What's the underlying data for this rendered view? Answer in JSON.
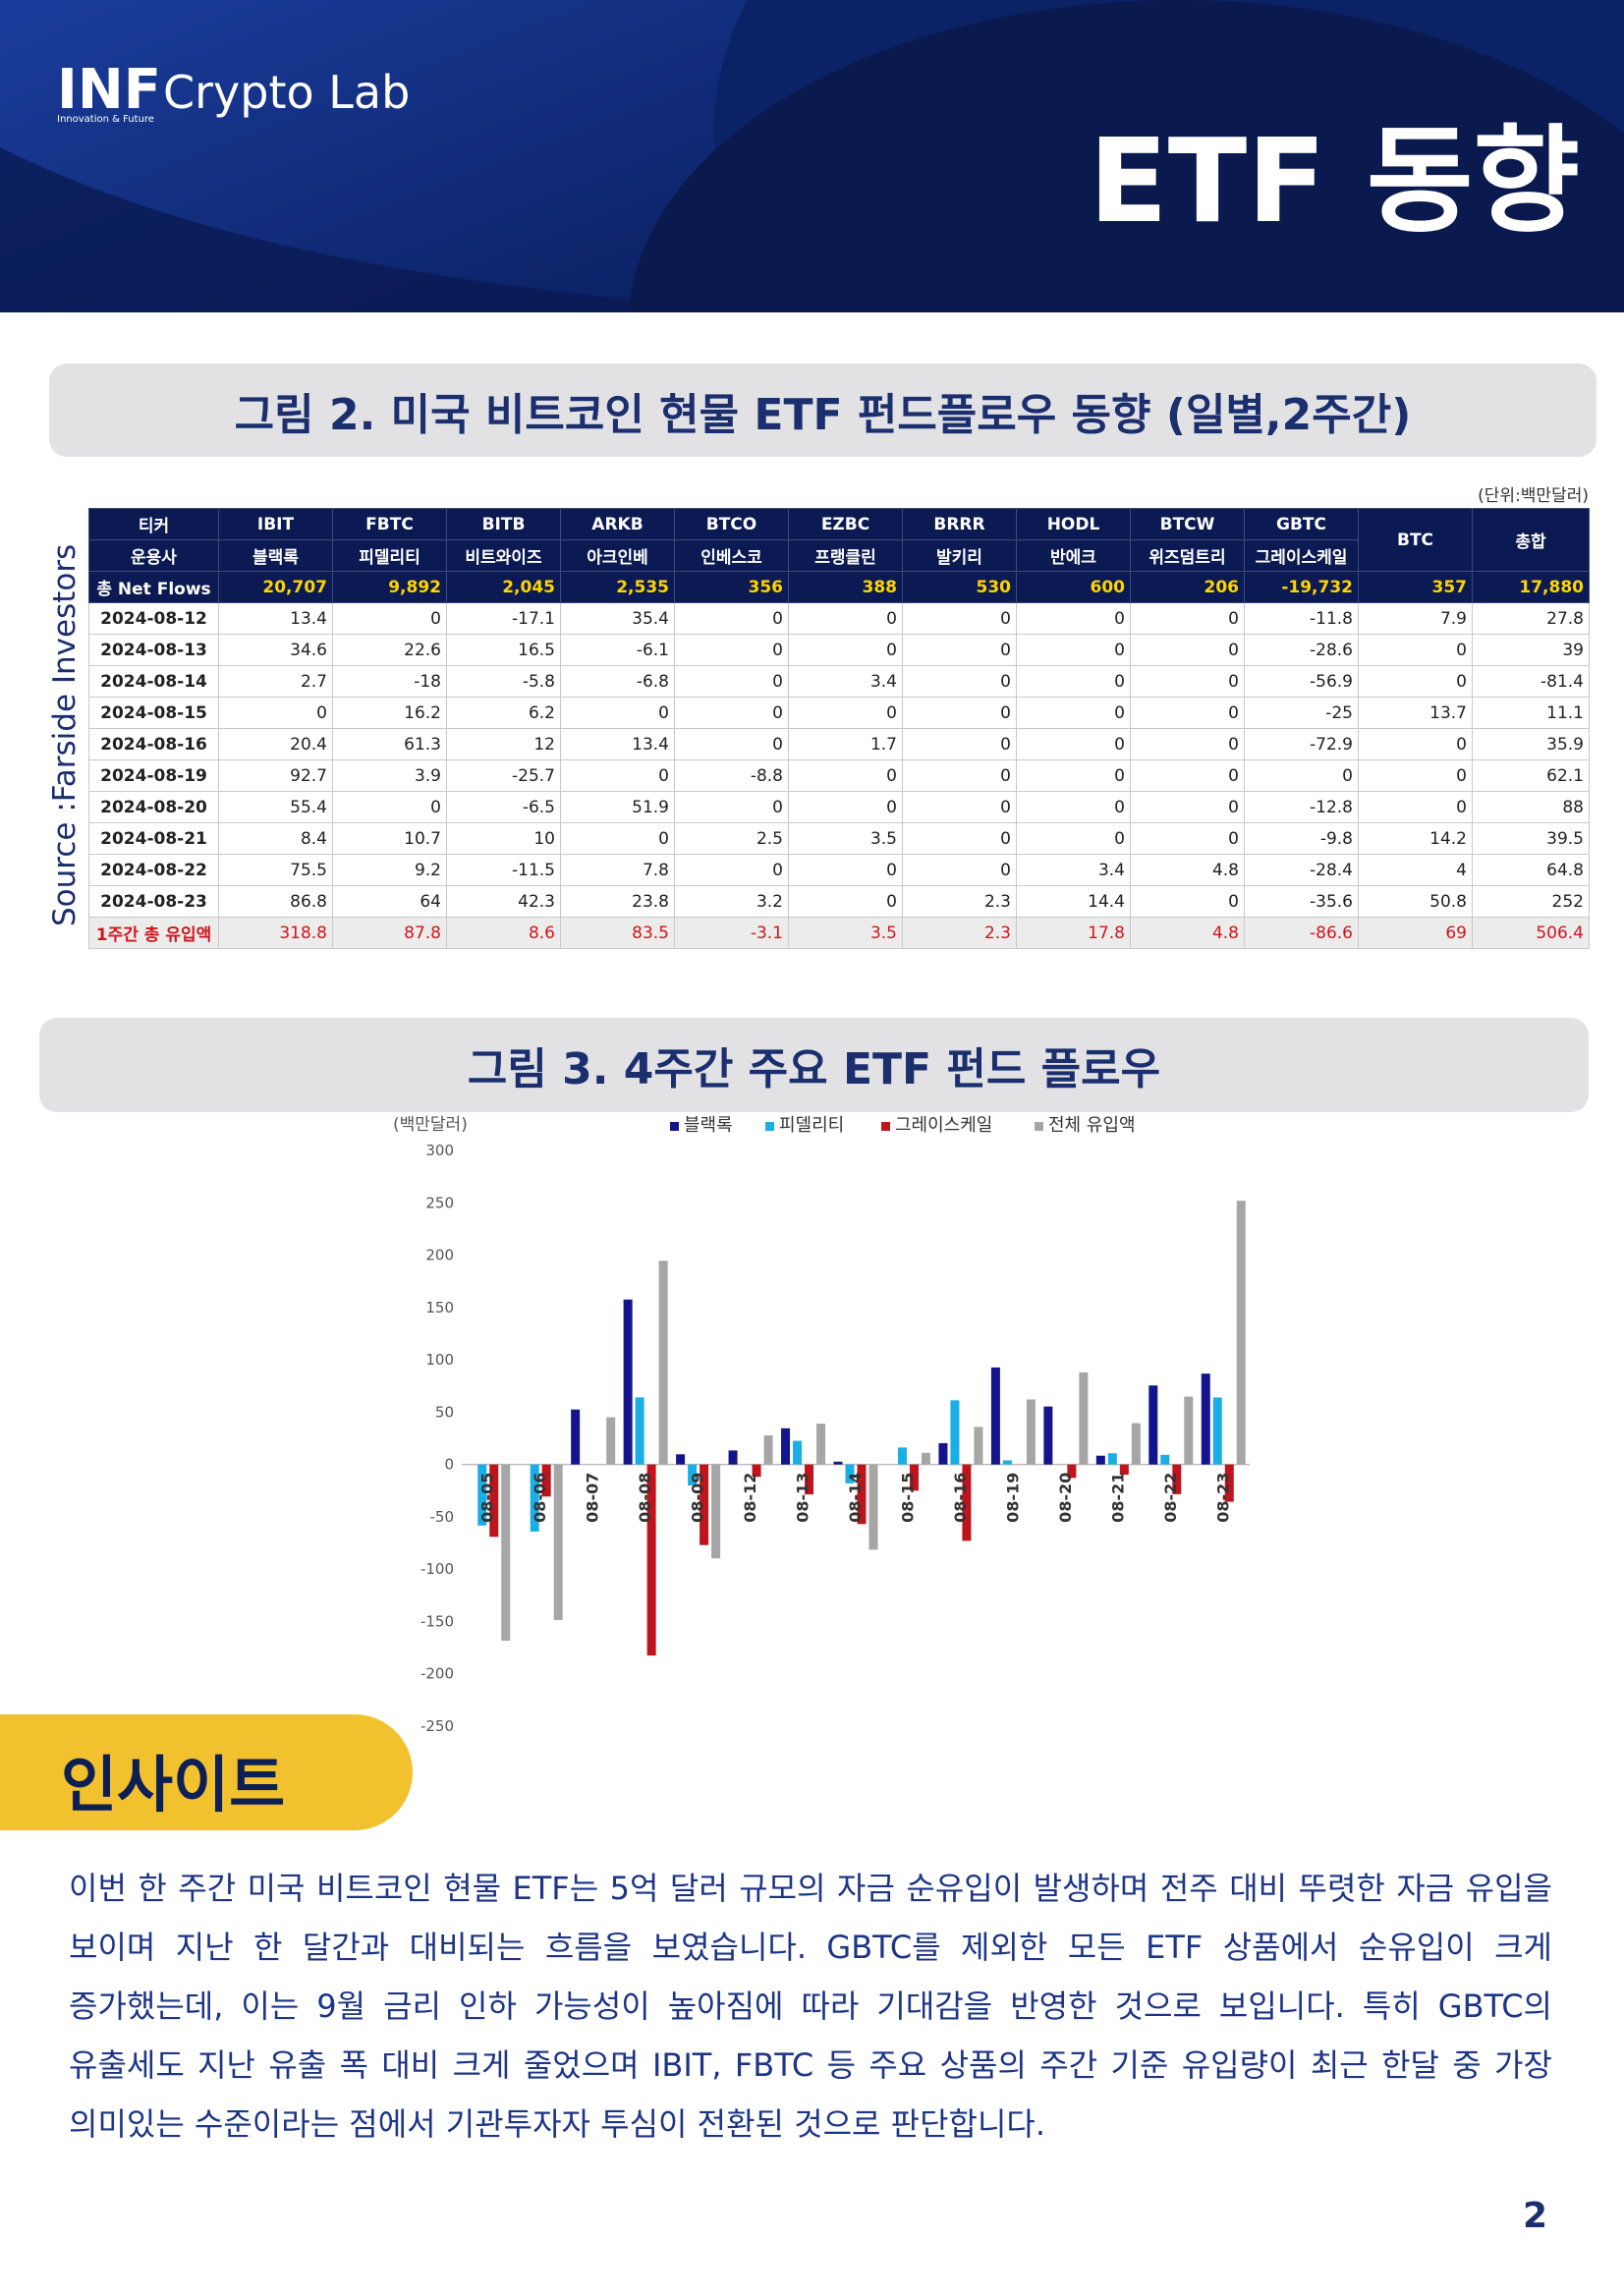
{
  "header": {
    "logo": "INF",
    "logo_name": "Crypto Lab",
    "tagline": "Innovation & Future",
    "title": "ETF 동향"
  },
  "figure2": {
    "title": "그림 2.  미국 비트코인 현물 ETF 펀드플로우 동향 (일별,2주간)",
    "unit": "(단위:백만달러)",
    "source": "Source :Farside Investors",
    "ticker_label": "티커",
    "manager_label": "운용사",
    "total_label": "총합",
    "tickers": [
      "IBIT",
      "FBTC",
      "BITB",
      "ARKB",
      "BTCO",
      "EZBC",
      "BRRR",
      "HODL",
      "BTCW",
      "GBTC",
      "BTC"
    ],
    "managers": [
      "블랙록",
      "피델리티",
      "비트와이즈",
      "아크인베",
      "인베스코",
      "프랭클린",
      "발키리",
      "반에크",
      "위즈덤트리",
      "그레이스케일"
    ],
    "net_flows": {
      "label": "총 Net Flows",
      "values": [
        "20,707",
        "9,892",
        "2,045",
        "2,535",
        "356",
        "388",
        "530",
        "600",
        "206",
        "-19,732",
        "357",
        "17,880"
      ]
    },
    "rows": [
      [
        "2024-08-12",
        "13.4",
        "0",
        "-17.1",
        "35.4",
        "0",
        "0",
        "0",
        "0",
        "0",
        "-11.8",
        "7.9",
        "27.8"
      ],
      [
        "2024-08-13",
        "34.6",
        "22.6",
        "16.5",
        "-6.1",
        "0",
        "0",
        "0",
        "0",
        "0",
        "-28.6",
        "0",
        "39"
      ],
      [
        "2024-08-14",
        "2.7",
        "-18",
        "-5.8",
        "-6.8",
        "0",
        "3.4",
        "0",
        "0",
        "0",
        "-56.9",
        "0",
        "-81.4"
      ],
      [
        "2024-08-15",
        "0",
        "16.2",
        "6.2",
        "0",
        "0",
        "0",
        "0",
        "0",
        "0",
        "-25",
        "13.7",
        "11.1"
      ],
      [
        "2024-08-16",
        "20.4",
        "61.3",
        "12",
        "13.4",
        "0",
        "1.7",
        "0",
        "0",
        "0",
        "-72.9",
        "0",
        "35.9"
      ],
      [
        "2024-08-19",
        "92.7",
        "3.9",
        "-25.7",
        "0",
        "-8.8",
        "0",
        "0",
        "0",
        "0",
        "0",
        "0",
        "62.1"
      ],
      [
        "2024-08-20",
        "55.4",
        "0",
        "-6.5",
        "51.9",
        "0",
        "0",
        "0",
        "0",
        "0",
        "-12.8",
        "0",
        "88"
      ],
      [
        "2024-08-21",
        "8.4",
        "10.7",
        "10",
        "0",
        "2.5",
        "3.5",
        "0",
        "0",
        "0",
        "-9.8",
        "14.2",
        "39.5"
      ],
      [
        "2024-08-22",
        "75.5",
        "9.2",
        "-11.5",
        "7.8",
        "0",
        "0",
        "0",
        "3.4",
        "4.8",
        "-28.4",
        "4",
        "64.8"
      ],
      [
        "2024-08-23",
        "86.8",
        "64",
        "42.3",
        "23.8",
        "3.2",
        "0",
        "2.3",
        "14.4",
        "0",
        "-35.6",
        "50.8",
        "252"
      ]
    ],
    "weekly_total": {
      "label": "1주간 총 유입액",
      "values": [
        "318.8",
        "87.8",
        "8.6",
        "83.5",
        "-3.1",
        "3.5",
        "2.3",
        "17.8",
        "4.8",
        "-86.6",
        "69",
        "506.4"
      ]
    }
  },
  "figure3": {
    "title": "그림 3.  4주간 주요 ETF 펀드 플로우"
  },
  "chart_data": {
    "type": "bar",
    "y_label": "(백만달러)",
    "categories": [
      "08-05",
      "08-06",
      "08-07",
      "08-08",
      "08-09",
      "08-12",
      "08-13",
      "08-14",
      "08-15",
      "08-16",
      "08-19",
      "08-20",
      "08-21",
      "08-22",
      "08-23"
    ],
    "series": [
      {
        "name": "블랙록",
        "color": "#14148c",
        "values": [
          0,
          0,
          52.5,
          157.6,
          9.7,
          13.4,
          34.6,
          2.7,
          0,
          20.4,
          92.7,
          55.4,
          8.4,
          75.5,
          86.8
        ]
      },
      {
        "name": "피델리티",
        "color": "#19aee6",
        "values": [
          -58.3,
          -64.1,
          0,
          64.1,
          -20,
          0,
          22.6,
          -18,
          16.2,
          61.3,
          3.9,
          0,
          10.7,
          9.2,
          64
        ]
      },
      {
        "name": "그레이스케일",
        "color": "#c0141c",
        "values": [
          -69.1,
          -30.6,
          0,
          -182.5,
          -77,
          -11.8,
          -28.6,
          -56.9,
          -25,
          -72.9,
          0,
          -12.8,
          -9.8,
          -28.4,
          -35.6
        ]
      },
      {
        "name": "전체 유입액",
        "color": "#a6a6a6",
        "values": [
          -168.4,
          -148.5,
          45.1,
          194.6,
          -89.7,
          27.8,
          39,
          -81.4,
          11.1,
          35.9,
          62.1,
          88,
          39.5,
          64.8,
          252
        ]
      }
    ],
    "ylim": [
      -250,
      300
    ],
    "yticks": [
      -250,
      -200,
      -150,
      -100,
      -50,
      0,
      50,
      100,
      150,
      200,
      250,
      300
    ]
  },
  "insight": {
    "title": "인사이트",
    "text": "이번 한 주간 미국 비트코인 현물 ETF는 5억 달러 규모의 자금 순유입이 발생하며 전주 대비 뚜렷한 자금 유입을 보이며 지난 한 달간과 대비되는 흐름을 보였습니다. GBTC를 제외한 모든 ETF 상품에서 순유입이 크게 증가했는데, 이는 9월 금리 인하 가능성이 높아짐에 따라 기대감을 반영한 것으로 보입니다. 특히 GBTC의 유출세도 지난 유출 폭 대비 크게 줄었으며 IBIT, FBTC 등 주요 상품의 주간 기준 유입량이 최근 한달 중 가장 의미있는 수준이라는 점에서 기관투자자 투심이 전환된 것으로 판단합니다."
  },
  "page_number": "2"
}
